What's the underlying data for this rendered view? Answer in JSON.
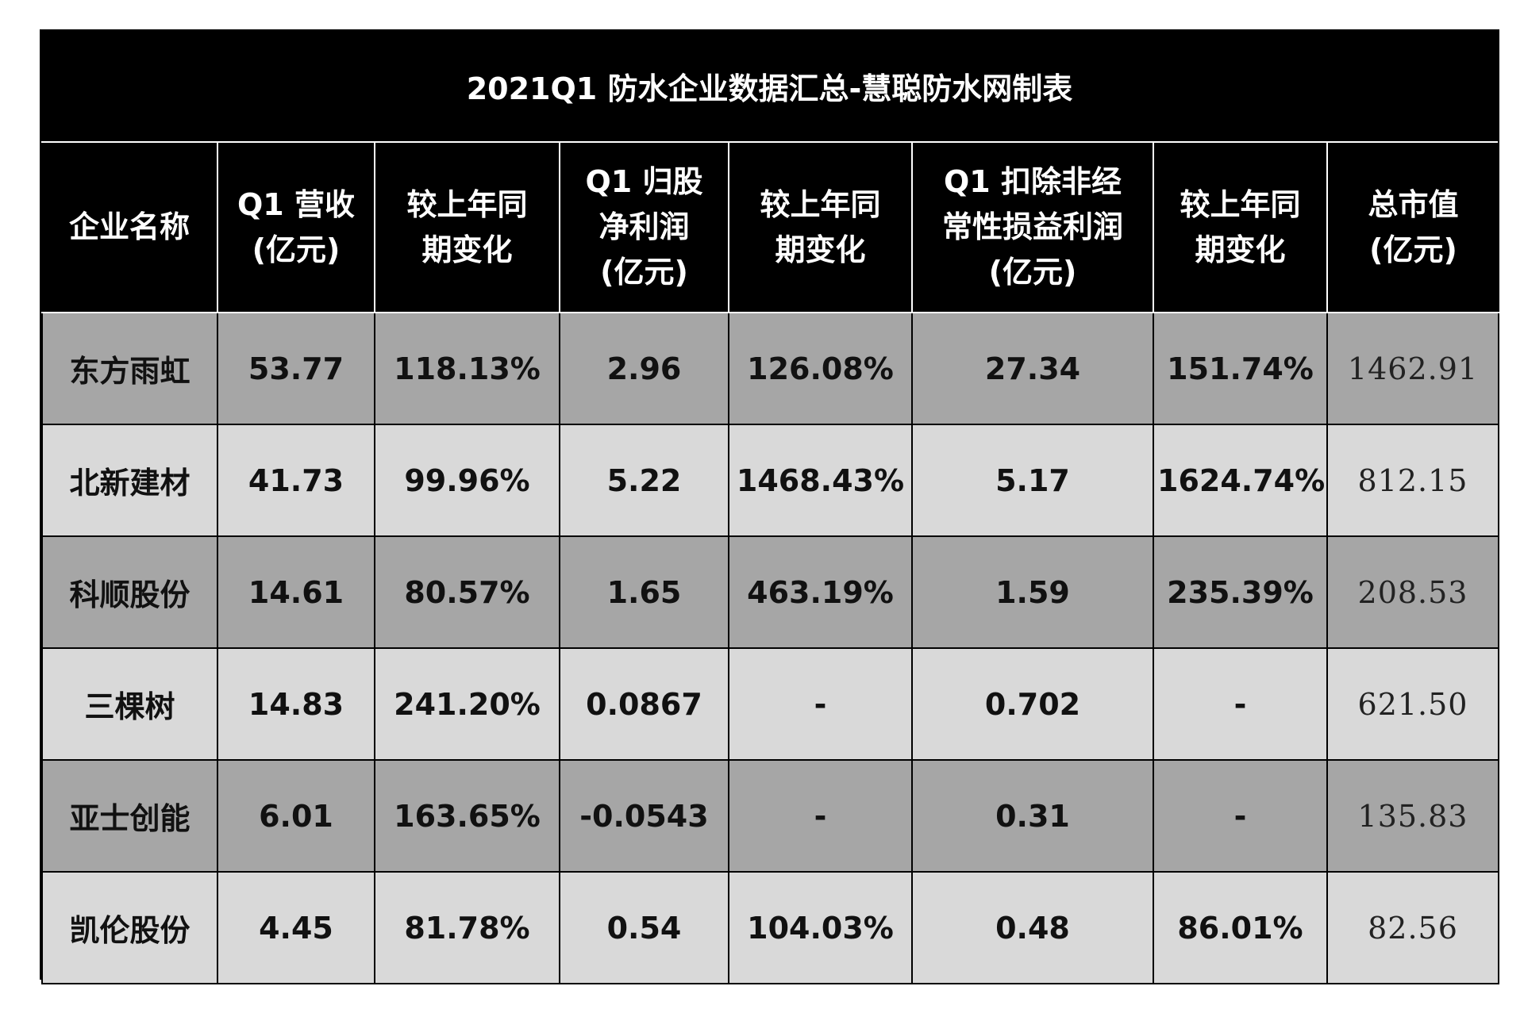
{
  "title": "2021Q1 防水企业数据汇总-慧聪防水网制表",
  "headers": [
    [
      "企业名称"
    ],
    [
      "Q1 营收",
      "(亿元)"
    ],
    [
      "较上年同",
      "期变化"
    ],
    [
      "Q1 归股",
      "净利润",
      "(亿元)"
    ],
    [
      "较上年同",
      "期变化"
    ],
    [
      "Q1 扣除非经",
      "常性损益利润",
      "(亿元)"
    ],
    [
      "较上年同",
      "期变化"
    ],
    [
      "总市值",
      "(亿元)"
    ]
  ],
  "rows": [
    {
      "company": "东方雨虹",
      "revenue": "53.77",
      "revenue_yoy": "118.13%",
      "net_profit": "2.96",
      "net_profit_yoy": "126.08%",
      "adj_profit": "27.34",
      "adj_profit_yoy": "151.74%",
      "market_cap": "1462.91"
    },
    {
      "company": "北新建材",
      "revenue": "41.73",
      "revenue_yoy": "99.96%",
      "net_profit": "5.22",
      "net_profit_yoy": "1468.43%",
      "adj_profit": "5.17",
      "adj_profit_yoy": "1624.74%",
      "market_cap": "812.15"
    },
    {
      "company": "科顺股份",
      "revenue": "14.61",
      "revenue_yoy": "80.57%",
      "net_profit": "1.65",
      "net_profit_yoy": "463.19%",
      "adj_profit": "1.59",
      "adj_profit_yoy": "235.39%",
      "market_cap": "208.53"
    },
    {
      "company": "三棵树",
      "revenue": "14.83",
      "revenue_yoy": "241.20%",
      "net_profit": "0.0867",
      "net_profit_yoy": "-",
      "adj_profit": "0.702",
      "adj_profit_yoy": "-",
      "market_cap": "621.50"
    },
    {
      "company": "亚士创能",
      "revenue": "6.01",
      "revenue_yoy": "163.65%",
      "net_profit": "-0.0543",
      "net_profit_yoy": "-",
      "adj_profit": "0.31",
      "adj_profit_yoy": "-",
      "market_cap": "135.83"
    },
    {
      "company": "凯伦股份",
      "revenue": "4.45",
      "revenue_yoy": "81.78%",
      "net_profit": "0.54",
      "net_profit_yoy": "104.03%",
      "adj_profit": "0.48",
      "adj_profit_yoy": "86.01%",
      "market_cap": "82.56"
    }
  ],
  "colors": {
    "header_bg": "#000000",
    "header_text": "#ffffff",
    "row_dark": "#a6a6a6",
    "row_light": "#d9d9d9"
  }
}
